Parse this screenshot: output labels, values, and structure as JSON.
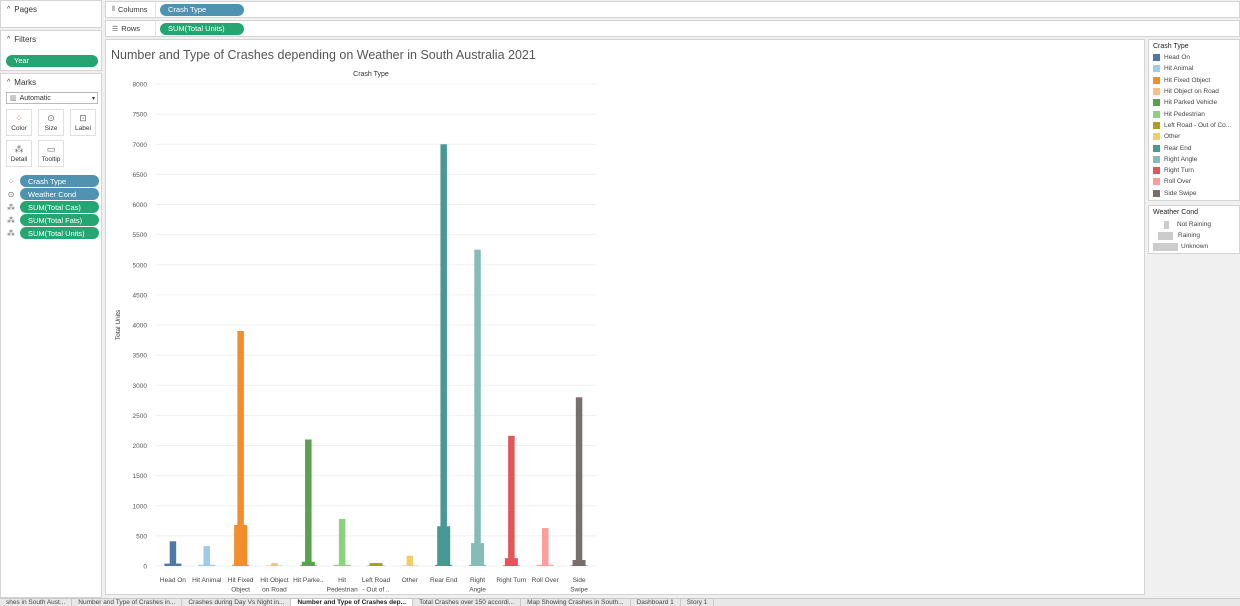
{
  "left": {
    "pages_title": "Pages",
    "filters_title": "Filters",
    "filter_pill": "Year",
    "marks_title": "Marks",
    "mark_type": "Automatic",
    "buttons": [
      "Color",
      "Size",
      "Label",
      "Detail",
      "Tooltip"
    ],
    "fields": [
      {
        "label": "Crash Type",
        "color": "#4f93b0"
      },
      {
        "label": "Weather Cond",
        "color": "#4f93b0"
      },
      {
        "label": "SUM(Total Cas)",
        "color": "#25a572"
      },
      {
        "label": "SUM(Total Fats)",
        "color": "#25a572"
      },
      {
        "label": "SUM(Total Units)",
        "color": "#25a572"
      }
    ]
  },
  "shelves": {
    "columns_label": "Columns",
    "columns_pill": "Crash Type",
    "rows_label": "Rows",
    "rows_pill": "SUM(Total Units)"
  },
  "legend_crash": {
    "title": "Crash Type",
    "items": [
      {
        "label": "Head On",
        "color": "#4e79a7"
      },
      {
        "label": "Hit Animal",
        "color": "#a0cbe8"
      },
      {
        "label": "Hit Fixed Object",
        "color": "#f28e2b"
      },
      {
        "label": "Hit Object on Road",
        "color": "#ffbe7d"
      },
      {
        "label": "Hit Parked Vehicle",
        "color": "#59a14f"
      },
      {
        "label": "Hit Pedestrian",
        "color": "#8cd17d"
      },
      {
        "label": "Left Road - Out of Co...",
        "color": "#b6992d"
      },
      {
        "label": "Other",
        "color": "#f1ce63"
      },
      {
        "label": "Rear End",
        "color": "#499894"
      },
      {
        "label": "Right Angle",
        "color": "#86bcb6"
      },
      {
        "label": "Right Turn",
        "color": "#e15759"
      },
      {
        "label": "Roll Over",
        "color": "#ff9d9a"
      },
      {
        "label": "Side Swipe",
        "color": "#79706e"
      }
    ]
  },
  "legend_weather": {
    "title": "Weather Cond",
    "items": [
      "Not Raining",
      "Raining",
      "Unknown"
    ]
  },
  "tabs": [
    "shes in South Aust...",
    "Number and Type of Crashes in...",
    "Crashes during Day Vs Night in...",
    "Number and Type of Crashes dep...",
    "Total Crashes over 150 accordi...",
    "Map Showing Crashes in South...",
    "Dashboard 1",
    "Story 1"
  ],
  "active_tab": 3,
  "chart_data": {
    "type": "bar",
    "title": "Number and Type of Crashes depending on Weather in South Australia 2021",
    "column_header": "Crash Type",
    "ylabel": "Total Units",
    "ylim": [
      0,
      8000
    ],
    "yticks": [
      0,
      500,
      1000,
      1500,
      2000,
      2500,
      3000,
      3500,
      4000,
      4500,
      5000,
      5500,
      6000,
      6500,
      7000,
      7500,
      8000
    ],
    "categories": [
      [
        "Head On"
      ],
      [
        "Hit Animal"
      ],
      [
        "Hit Fixed",
        "Object"
      ],
      [
        "Hit Object",
        "on Road"
      ],
      [
        "Hit Parke.."
      ],
      [
        "Hit",
        "Pedestrian"
      ],
      [
        "Left Road",
        "- Out of .."
      ],
      [
        "Other"
      ],
      [
        "Rear End"
      ],
      [
        "Right",
        "Angle"
      ],
      [
        "Right Turn"
      ],
      [
        "Roll Over"
      ],
      [
        "Side",
        "Swipe"
      ]
    ],
    "colors": [
      "#4e79a7",
      "#a0cbe8",
      "#f28e2b",
      "#ffbe7d",
      "#59a14f",
      "#8cd17d",
      "#b6992d",
      "#f1ce63",
      "#499894",
      "#86bcb6",
      "#e15759",
      "#ff9d9a",
      "#79706e"
    ],
    "series": [
      {
        "name": "Not Raining",
        "values": [
          410,
          330,
          3900,
          50,
          2100,
          780,
          40,
          170,
          7000,
          5250,
          2160,
          630,
          2800
        ]
      },
      {
        "name": "Raining",
        "values": [
          0,
          0,
          680,
          0,
          70,
          0,
          50,
          0,
          660,
          380,
          130,
          0,
          100
        ]
      },
      {
        "name": "Unknown",
        "values": [
          40,
          20,
          20,
          10,
          10,
          20,
          10,
          10,
          20,
          20,
          10,
          20,
          10
        ]
      }
    ]
  }
}
